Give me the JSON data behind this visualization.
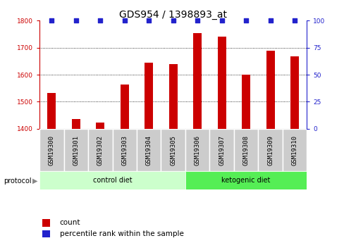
{
  "title": "GDS954 / 1398893_at",
  "samples": [
    "GSM19300",
    "GSM19301",
    "GSM19302",
    "GSM19303",
    "GSM19304",
    "GSM19305",
    "GSM19306",
    "GSM19307",
    "GSM19308",
    "GSM19309",
    "GSM19310"
  ],
  "counts": [
    1532,
    1435,
    1422,
    1565,
    1645,
    1640,
    1755,
    1742,
    1601,
    1690,
    1668
  ],
  "percentile_ranks": [
    100,
    100,
    100,
    100,
    100,
    100,
    100,
    100,
    100,
    100,
    100
  ],
  "ylim_left": [
    1400,
    1800
  ],
  "ylim_right": [
    0,
    100
  ],
  "yticks_left": [
    1400,
    1500,
    1600,
    1700,
    1800
  ],
  "yticks_right": [
    0,
    25,
    50,
    75,
    100
  ],
  "bar_color": "#cc0000",
  "dot_color": "#2222cc",
  "bar_width": 0.35,
  "control_color": "#ccffcc",
  "ketogenic_color": "#55ee55",
  "group_label": "protocol",
  "legend_count_label": "count",
  "legend_pct_label": "percentile rank within the sample",
  "title_fontsize": 10,
  "tick_label_fontsize": 6.5,
  "left_axis_color": "#cc0000",
  "right_axis_color": "#2222cc",
  "grid_color": "#000000",
  "sample_box_color": "#cccccc",
  "n_control": 6,
  "n_keto": 5
}
